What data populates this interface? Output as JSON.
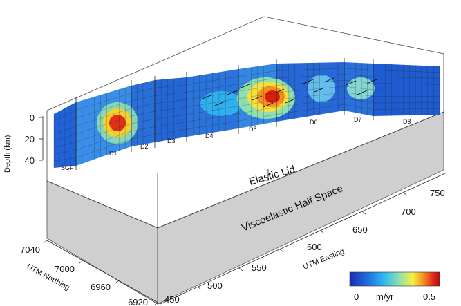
{
  "labels": {
    "depth_axis": "Depth (km)",
    "northing_axis": "UTM Northing",
    "easting_axis": "UTM Easting",
    "elastic_lid": "Elastic Lid",
    "half_space": "Viscoelastic Half Space"
  },
  "depth_ticks": [
    "0",
    "20",
    "40"
  ],
  "northing_ticks": [
    "7040",
    "7000",
    "6960",
    "6920"
  ],
  "easting_ticks": [
    "450",
    "500",
    "550",
    "600",
    "650",
    "700",
    "750"
  ],
  "segments": [
    "SGF",
    "D1",
    "D2",
    "D3",
    "D4",
    "D5",
    "D6",
    "D7",
    "D8"
  ],
  "colorbar": {
    "min_label": "0",
    "unit_label": "m/yr",
    "max_label": "0.5",
    "colors": [
      "#1a2bb0",
      "#1f6fe0",
      "#2fb8f0",
      "#8fe0b0",
      "#f5f040",
      "#f59020",
      "#e02818",
      "#b01010"
    ]
  }
}
